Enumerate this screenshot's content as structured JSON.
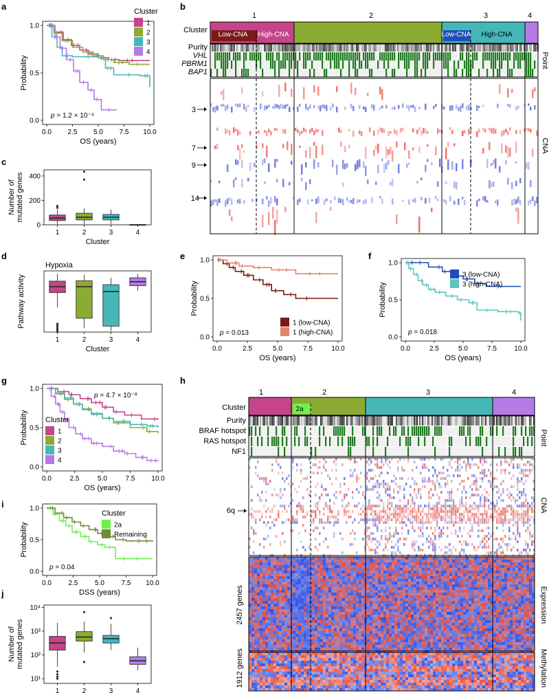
{
  "figure": {
    "panels": [
      "a",
      "b",
      "c",
      "d",
      "e",
      "f",
      "g",
      "h",
      "i",
      "j"
    ]
  },
  "colors": {
    "c1": "#c4458a",
    "c2": "#8bab32",
    "c3": "#45b7b9",
    "c4": "#b679e6",
    "low1": "#7b1a16",
    "high1": "#e8826b",
    "low3": "#1d4fb8",
    "high3": "#5fc4c0",
    "green": "#1f7a1f",
    "cnaRed": "#e8534a",
    "cnaBlue": "#4f5fd6",
    "exRed": "#e64a3d",
    "exBlue": "#2f4fe6",
    "twoA": "#6ef04e",
    "remaining": "#6f8a3a",
    "dark": "#000000",
    "grid": "#dddddd",
    "axis": "#333333"
  },
  "chart_data": [
    {
      "panel": "a",
      "type": "line",
      "title": "",
      "xlabel": "OS (years)",
      "ylabel": "Probability",
      "xlim": [
        0,
        10
      ],
      "ylim": [
        0,
        1
      ],
      "xticks": [
        "0.0",
        "2.5",
        "5.0",
        "7.5",
        "10.0"
      ],
      "yticks": [
        "0.0",
        "0.5",
        "1.0"
      ],
      "legend_title": "Cluster",
      "legend": [
        "1",
        "2",
        "3",
        "4"
      ],
      "pvalue": "p = 1.2 × 10⁻⁴",
      "series": [
        {
          "name": "1",
          "color": "c1",
          "x": [
            0,
            0.8,
            1.6,
            2.4,
            3.2,
            4.0,
            5.0,
            6.0,
            7.0,
            10.0
          ],
          "y": [
            1.0,
            0.93,
            0.85,
            0.79,
            0.74,
            0.7,
            0.66,
            0.64,
            0.63,
            0.63
          ]
        },
        {
          "name": "2",
          "color": "c2",
          "x": [
            0,
            0.7,
            1.5,
            2.5,
            3.5,
            4.5,
            5.5,
            6.5,
            8.0,
            10.0
          ],
          "y": [
            1.0,
            0.92,
            0.84,
            0.77,
            0.72,
            0.68,
            0.64,
            0.61,
            0.59,
            0.59
          ]
        },
        {
          "name": "3",
          "color": "c3",
          "x": [
            0,
            0.5,
            1.0,
            1.5,
            2.5,
            5.0,
            5.7,
            6.5,
            9.0,
            10.0
          ],
          "y": [
            1.0,
            0.88,
            0.77,
            0.68,
            0.67,
            0.66,
            0.55,
            0.48,
            0.47,
            0.35
          ]
        },
        {
          "name": "4",
          "color": "c4",
          "x": [
            0,
            0.8,
            1.3,
            1.9,
            2.6,
            3.2,
            4.0,
            4.6,
            5.3,
            6.8
          ],
          "y": [
            1.0,
            0.88,
            0.76,
            0.64,
            0.52,
            0.4,
            0.32,
            0.22,
            0.11,
            0.11
          ]
        }
      ]
    },
    {
      "panel": "b",
      "type": "heatmap",
      "title": "",
      "cluster_labels": [
        "1",
        "2",
        "3",
        "4"
      ],
      "row_label": "Cluster",
      "subgroups": [
        "Low-CNA",
        "High-CNA",
        "Low-CNA",
        "High-CNA"
      ],
      "track_labels": [
        "Purity",
        "VHL",
        "PBRM1",
        "BAP1"
      ],
      "side_labels": [
        "Point",
        "CNA"
      ],
      "arrow_labels": [
        "3",
        "7",
        "9",
        "14"
      ]
    },
    {
      "panel": "c",
      "type": "box",
      "title": "",
      "xlabel": "Cluster",
      "ylabel": "Number of mutated genes",
      "categories": [
        "1",
        "2",
        "3",
        "4"
      ],
      "yticks": [
        "0",
        "200",
        "400"
      ],
      "ylim": [
        0,
        450
      ],
      "boxes": [
        {
          "min": 5,
          "q1": 35,
          "median": 55,
          "q3": 80,
          "max": 125,
          "outliers": [
            140,
            155
          ]
        },
        {
          "min": 5,
          "q1": 40,
          "median": 62,
          "q3": 95,
          "max": 135,
          "outliers": [
            370,
            435
          ]
        },
        {
          "min": 5,
          "q1": 40,
          "median": 62,
          "q3": 85,
          "max": 125,
          "outliers": []
        },
        {
          "min": 0,
          "q1": 0,
          "median": 0,
          "q3": 2,
          "max": 2,
          "outliers": []
        }
      ]
    },
    {
      "panel": "d",
      "type": "box",
      "title": "Hypoxia",
      "xlabel": "Cluster",
      "ylabel": "Pathway activity",
      "categories": [
        "1",
        "2",
        "3",
        "4"
      ],
      "ylim": [
        0,
        3.1
      ],
      "boxes": [
        {
          "min": 1.25,
          "q1": 2.0,
          "median": 2.3,
          "q3": 2.58,
          "max": 2.95,
          "outliers": [
            0.02,
            0.1,
            0.18,
            0.26,
            0.34,
            0.42
          ]
        },
        {
          "min": 0.2,
          "q1": 0.7,
          "median": 2.3,
          "q3": 2.6,
          "max": 2.9,
          "outliers": []
        },
        {
          "min": 0.05,
          "q1": 0.3,
          "median": 2.05,
          "q3": 2.4,
          "max": 2.75,
          "outliers": []
        },
        {
          "min": 2.1,
          "q1": 2.35,
          "median": 2.55,
          "q3": 2.75,
          "max": 2.95,
          "outliers": []
        }
      ]
    },
    {
      "panel": "e",
      "type": "line",
      "title": "",
      "xlabel": "OS (years)",
      "ylabel": "Probability",
      "xlim": [
        0,
        10
      ],
      "ylim": [
        0,
        1
      ],
      "xticks": [
        "0.0",
        "2.5",
        "5.0",
        "7.5",
        "10.0"
      ],
      "yticks": [
        "0.0",
        "0.5",
        "1.0"
      ],
      "legend": [
        "1 (low-CNA)",
        "1 (high-CNA)"
      ],
      "pvalue": "p = 0.013",
      "series": [
        {
          "name": "1 (low-CNA)",
          "color": "low1",
          "x": [
            0,
            0.5,
            1.0,
            1.5,
            2.2,
            3.0,
            3.8,
            4.5,
            5.5,
            6.5,
            10.0
          ],
          "y": [
            1.0,
            0.95,
            0.9,
            0.85,
            0.8,
            0.74,
            0.68,
            0.6,
            0.55,
            0.5,
            0.5
          ]
        },
        {
          "name": "1 (high-CNA)",
          "color": "high1",
          "x": [
            0,
            0.8,
            1.8,
            3.0,
            4.5,
            6.5,
            8.0,
            10.0
          ],
          "y": [
            1.0,
            0.96,
            0.92,
            0.9,
            0.87,
            0.82,
            0.82,
            0.82
          ]
        }
      ]
    },
    {
      "panel": "f",
      "type": "line",
      "title": "",
      "xlabel": "OS (years)",
      "ylabel": "Probability",
      "xlim": [
        0,
        10
      ],
      "ylim": [
        0,
        1
      ],
      "xticks": [
        "0.0",
        "2.5",
        "5.0",
        "7.5",
        "10.0"
      ],
      "yticks": [
        "0.0",
        "0.5",
        "1.0"
      ],
      "legend": [
        "3 (low-CNA)",
        "3 (high-CNA)"
      ],
      "pvalue": "p = 0.018",
      "series": [
        {
          "name": "3 (low-CNA)",
          "color": "low3",
          "x": [
            0,
            2.0,
            3.2,
            4.0,
            5.0,
            6.0,
            7.0,
            10.0
          ],
          "y": [
            1.0,
            0.94,
            0.88,
            0.82,
            0.78,
            0.72,
            0.68,
            0.68
          ]
        },
        {
          "name": "3 (high-CNA)",
          "color": "high3",
          "x": [
            0,
            0.3,
            0.7,
            1.1,
            1.5,
            2.0,
            2.6,
            3.5,
            4.5,
            5.5,
            6.2,
            8.0,
            9.8,
            10.0
          ],
          "y": [
            1.0,
            0.92,
            0.84,
            0.76,
            0.7,
            0.64,
            0.6,
            0.55,
            0.5,
            0.46,
            0.36,
            0.34,
            0.32,
            0.22
          ]
        }
      ]
    },
    {
      "panel": "g",
      "type": "line",
      "title": "",
      "xlabel": "OS (years)",
      "ylabel": "Probability",
      "xlim": [
        0,
        10
      ],
      "ylim": [
        0,
        1
      ],
      "xticks": [
        "0.0",
        "2.5",
        "5.0",
        "7.5",
        "10.0"
      ],
      "yticks": [
        "0.0",
        "0.5",
        "1.0"
      ],
      "legend_title": "Cluster",
      "legend": [
        "1",
        "2",
        "3",
        "4"
      ],
      "pvalue": "p = 4.7 × 10⁻⁸",
      "series": [
        {
          "name": "1",
          "color": "c1",
          "x": [
            0,
            1.0,
            2.0,
            3.0,
            4.0,
            5.0,
            6.0,
            7.0,
            8.5,
            10.0
          ],
          "y": [
            1.0,
            0.96,
            0.92,
            0.87,
            0.82,
            0.76,
            0.7,
            0.66,
            0.61,
            0.6
          ]
        },
        {
          "name": "2",
          "color": "c2",
          "x": [
            0,
            0.8,
            1.6,
            2.4,
            3.2,
            4.0,
            5.0,
            6.0,
            7.5,
            9.0,
            10.0
          ],
          "y": [
            1.0,
            0.93,
            0.86,
            0.8,
            0.74,
            0.68,
            0.62,
            0.56,
            0.5,
            0.45,
            0.43
          ]
        },
        {
          "name": "3",
          "color": "c3",
          "x": [
            0,
            0.8,
            1.6,
            2.4,
            3.2,
            4.0,
            5.0,
            6.0,
            7.5,
            9.0,
            10.0
          ],
          "y": [
            1.0,
            0.94,
            0.88,
            0.8,
            0.73,
            0.67,
            0.62,
            0.58,
            0.54,
            0.52,
            0.5
          ]
        },
        {
          "name": "4",
          "color": "c4",
          "x": [
            0,
            0.4,
            0.8,
            1.2,
            1.6,
            2.0,
            2.6,
            3.2,
            4.0,
            5.0,
            6.0,
            7.0,
            8.0,
            9.0,
            10.0
          ],
          "y": [
            1.0,
            0.9,
            0.8,
            0.7,
            0.6,
            0.5,
            0.42,
            0.36,
            0.3,
            0.26,
            0.2,
            0.17,
            0.12,
            0.08,
            0.07
          ]
        }
      ]
    },
    {
      "panel": "h",
      "type": "heatmap",
      "title": "",
      "cluster_labels": [
        "1",
        "2",
        "3",
        "4"
      ],
      "row_label": "Cluster",
      "subgroups": [
        "2a"
      ],
      "track_labels": [
        "Purity",
        "BRAF hotspot",
        "RAS hotspot",
        "NF1"
      ],
      "side_labels": [
        "Point",
        "CNA",
        "Expression",
        "Methylation"
      ],
      "arrow_labels": [
        "6q"
      ],
      "gene_labels": [
        "2457 genes",
        "1912 genes"
      ]
    },
    {
      "panel": "i",
      "type": "line",
      "title": "",
      "xlabel": "DSS (years)",
      "ylabel": "Probability",
      "xlim": [
        0,
        10
      ],
      "ylim": [
        0,
        1
      ],
      "xticks": [
        "0.0",
        "2.5",
        "5.0",
        "7.5",
        "10.0"
      ],
      "yticks": [
        "0.0",
        "0.5",
        "1.0"
      ],
      "legend_title": "Cluster",
      "legend": [
        "2a",
        "Remaining"
      ],
      "pvalue": "p = 0.04",
      "series": [
        {
          "name": "2a",
          "color": "twoA",
          "x": [
            0,
            0.6,
            1.2,
            1.8,
            2.4,
            3.2,
            4.0,
            4.8,
            5.5,
            6.5,
            7.5,
            10.0
          ],
          "y": [
            1.0,
            0.9,
            0.8,
            0.72,
            0.62,
            0.55,
            0.47,
            0.42,
            0.38,
            0.2,
            0.2,
            0.2
          ]
        },
        {
          "name": "Remaining",
          "color": "remaining",
          "x": [
            0,
            0.8,
            1.6,
            2.4,
            3.2,
            4.0,
            4.8,
            5.6,
            6.5,
            7.5,
            10.0
          ],
          "y": [
            1.0,
            0.92,
            0.85,
            0.78,
            0.72,
            0.66,
            0.6,
            0.55,
            0.5,
            0.48,
            0.47
          ]
        }
      ]
    },
    {
      "panel": "j",
      "type": "box",
      "title": "",
      "xlabel": "Cluster",
      "ylabel": "Number of mutated genes",
      "categories": [
        "1",
        "2",
        "3",
        "4"
      ],
      "scale": "log",
      "yticks": [
        "10¹",
        "10²",
        "10³",
        "10⁴"
      ],
      "ylim_log10": [
        0.8,
        4.1
      ],
      "boxes": [
        {
          "min": 1.5,
          "q1": 2.2,
          "median": 2.5,
          "q3": 2.78,
          "max": 3.35,
          "outliers": [
            1.3,
            1.18,
            1.08,
            1.0
          ]
        },
        {
          "min": 2.1,
          "q1": 2.58,
          "median": 2.75,
          "q3": 2.98,
          "max": 3.4,
          "outliers": [
            3.8,
            1.7
          ]
        },
        {
          "min": 2.2,
          "q1": 2.5,
          "median": 2.68,
          "q3": 2.82,
          "max": 3.3,
          "outliers": [
            3.55
          ]
        },
        {
          "min": 1.35,
          "q1": 1.6,
          "median": 1.75,
          "q3": 1.92,
          "max": 2.3,
          "outliers": []
        }
      ]
    }
  ]
}
